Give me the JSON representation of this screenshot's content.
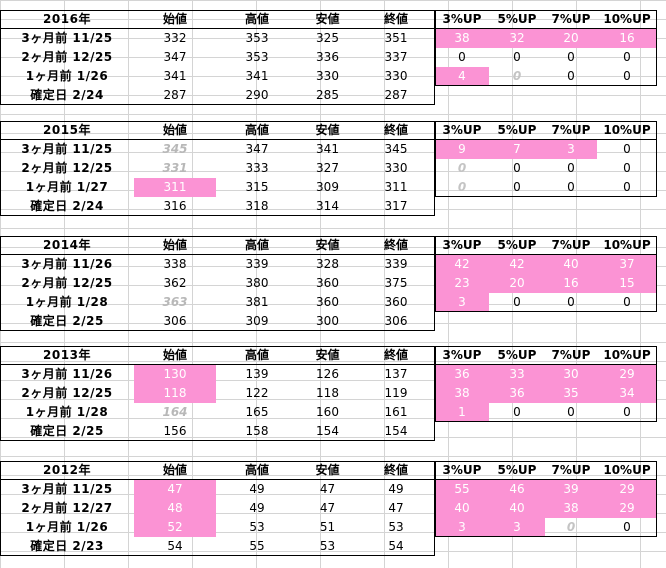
{
  "headers": [
    "始値",
    "高値",
    "安値",
    "終値",
    "3%UP",
    "5%UP",
    "7%UP",
    "10%UP"
  ],
  "blocks": [
    {
      "year": "2016年",
      "rows": [
        {
          "label": "3ヶ月前 11/25",
          "vals": [
            "332",
            "353",
            "325",
            "351",
            "38",
            "32",
            "20",
            "16"
          ],
          "style": [
            "",
            "",
            "",
            "",
            "p",
            "p",
            "p",
            "p"
          ]
        },
        {
          "label": "2ヶ月前 12/25",
          "vals": [
            "347",
            "353",
            "336",
            "337",
            "0",
            "0",
            "0",
            "0"
          ],
          "style": [
            "",
            "",
            "",
            "",
            "",
            "",
            "",
            ""
          ]
        },
        {
          "label": "1ヶ月前 1/26",
          "vals": [
            "341",
            "341",
            "330",
            "330",
            "4",
            "0",
            "0",
            "0"
          ],
          "style": [
            "",
            "",
            "",
            "",
            "p",
            "gz",
            "",
            ""
          ]
        },
        {
          "label": "確定日 2/24",
          "vals": [
            "287",
            "290",
            "285",
            "287",
            "",
            "",
            "",
            ""
          ],
          "style": [
            "",
            "",
            "",
            "",
            "",
            "",
            "",
            ""
          ]
        }
      ]
    },
    {
      "year": "2015年",
      "rows": [
        {
          "label": "3ヶ月前 11/25",
          "vals": [
            "345",
            "347",
            "341",
            "345",
            "9",
            "7",
            "3",
            "0"
          ],
          "style": [
            "g",
            "",
            "",
            "",
            "p",
            "p",
            "p",
            ""
          ]
        },
        {
          "label": "2ヶ月前 12/25",
          "vals": [
            "331",
            "333",
            "327",
            "330",
            "0",
            "0",
            "0",
            "0"
          ],
          "style": [
            "g",
            "",
            "",
            "",
            "gz",
            "",
            "",
            ""
          ]
        },
        {
          "label": "1ヶ月前 1/27",
          "vals": [
            "311",
            "315",
            "309",
            "311",
            "0",
            "0",
            "0",
            "0"
          ],
          "style": [
            "p",
            "",
            "",
            "",
            "gz",
            "",
            "",
            ""
          ]
        },
        {
          "label": "確定日 2/24",
          "vals": [
            "316",
            "318",
            "314",
            "317",
            "",
            "",
            "",
            ""
          ],
          "style": [
            "",
            "",
            "",
            "",
            "",
            "",
            "",
            ""
          ]
        }
      ]
    },
    {
      "year": "2014年",
      "rows": [
        {
          "label": "3ヶ月前 11/26",
          "vals": [
            "338",
            "339",
            "328",
            "339",
            "42",
            "42",
            "40",
            "37"
          ],
          "style": [
            "",
            "",
            "",
            "",
            "p",
            "p",
            "p",
            "p"
          ]
        },
        {
          "label": "2ヶ月前 12/25",
          "vals": [
            "362",
            "380",
            "360",
            "375",
            "23",
            "20",
            "16",
            "15"
          ],
          "style": [
            "",
            "",
            "",
            "",
            "p",
            "p",
            "p",
            "p"
          ]
        },
        {
          "label": "1ヶ月前 1/28",
          "vals": [
            "363",
            "381",
            "360",
            "360",
            "3",
            "0",
            "0",
            "0"
          ],
          "style": [
            "g",
            "",
            "",
            "",
            "p",
            "",
            "",
            ""
          ]
        },
        {
          "label": "確定日 2/25",
          "vals": [
            "306",
            "309",
            "300",
            "306",
            "",
            "",
            "",
            ""
          ],
          "style": [
            "",
            "",
            "",
            "",
            "",
            "",
            "",
            ""
          ]
        }
      ]
    },
    {
      "year": "2013年",
      "rows": [
        {
          "label": "3ヶ月前 11/26",
          "vals": [
            "130",
            "139",
            "126",
            "137",
            "36",
            "33",
            "30",
            "29"
          ],
          "style": [
            "p",
            "",
            "",
            "",
            "p",
            "p",
            "p",
            "p"
          ]
        },
        {
          "label": "2ヶ月前 12/25",
          "vals": [
            "118",
            "122",
            "118",
            "119",
            "38",
            "36",
            "35",
            "34"
          ],
          "style": [
            "p",
            "",
            "",
            "",
            "p",
            "p",
            "p",
            "p"
          ]
        },
        {
          "label": "1ヶ月前 1/28",
          "vals": [
            "164",
            "165",
            "160",
            "161",
            "1",
            "0",
            "0",
            "0"
          ],
          "style": [
            "g",
            "",
            "",
            "",
            "p",
            "",
            "",
            ""
          ]
        },
        {
          "label": "確定日 2/25",
          "vals": [
            "156",
            "158",
            "154",
            "154",
            "",
            "",
            "",
            ""
          ],
          "style": [
            "",
            "",
            "",
            "",
            "",
            "",
            "",
            ""
          ]
        }
      ]
    },
    {
      "year": "2012年",
      "rows": [
        {
          "label": "3ヶ月前 11/25",
          "vals": [
            "47",
            "49",
            "47",
            "49",
            "55",
            "46",
            "39",
            "29"
          ],
          "style": [
            "p",
            "",
            "",
            "",
            "p",
            "p",
            "p",
            "p"
          ]
        },
        {
          "label": "2ヶ月前 12/27",
          "vals": [
            "48",
            "49",
            "47",
            "47",
            "40",
            "40",
            "38",
            "29"
          ],
          "style": [
            "p",
            "",
            "",
            "",
            "p",
            "p",
            "p",
            "p"
          ]
        },
        {
          "label": "1ヶ月前 1/26",
          "vals": [
            "52",
            "53",
            "51",
            "53",
            "3",
            "3",
            "0",
            "0"
          ],
          "style": [
            "p",
            "",
            "",
            "",
            "p",
            "p",
            "gz",
            ""
          ]
        },
        {
          "label": "確定日 2/23",
          "vals": [
            "54",
            "55",
            "53",
            "54",
            "",
            "",
            "",
            ""
          ],
          "style": [
            "",
            "",
            "",
            "",
            "",
            "",
            "",
            ""
          ]
        }
      ]
    }
  ]
}
